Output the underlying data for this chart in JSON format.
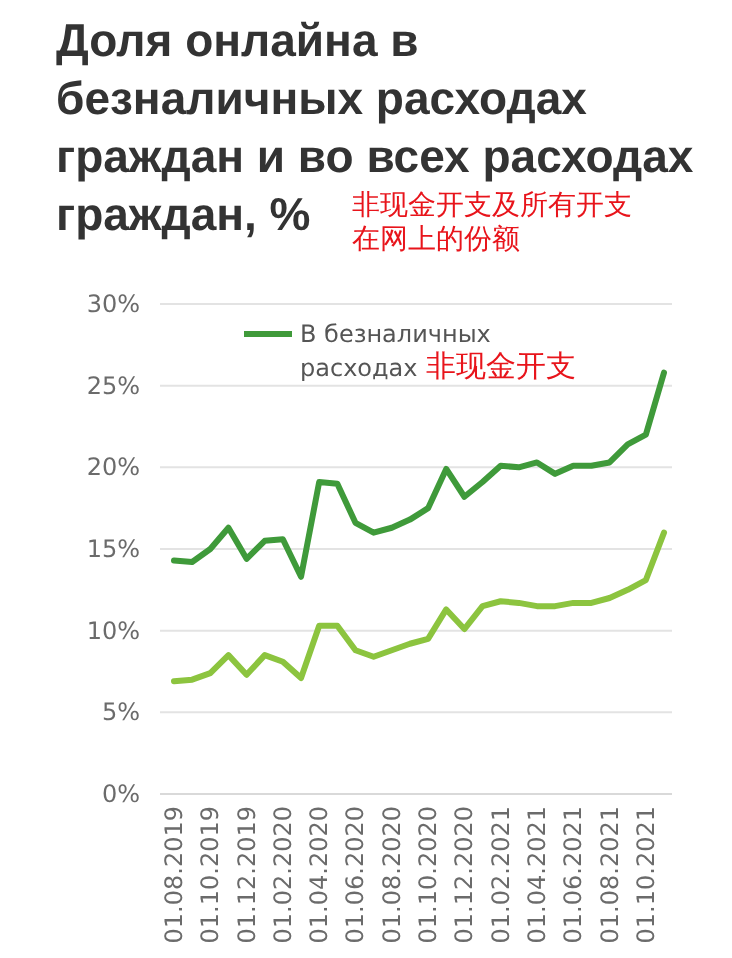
{
  "chart_data": {
    "type": "line",
    "title": "Доля онлайна в безналичных расходах граждан и во всех расходах граждан, %",
    "annotations": [
      "非现金开支及所有开支在网上的份额",
      "非现金开支"
    ],
    "categories": [
      "01.08.2019",
      null,
      "01.10.2019",
      null,
      "01.12.2019",
      null,
      "01.02.2020",
      null,
      "01.04.2020",
      null,
      "01.06.2020",
      null,
      "01.08.2020",
      null,
      "01.10.2020",
      null,
      "01.12.2020",
      null,
      "01.02.2021",
      null,
      "01.04.2021",
      null,
      "01.06.2021",
      null,
      "01.08.2021",
      null,
      "01.10.2021",
      null
    ],
    "series": [
      {
        "name": "В безналичных расходах",
        "color": "#3f9a3a",
        "values": [
          14.3,
          14.2,
          15.0,
          16.3,
          14.4,
          15.5,
          15.6,
          13.3,
          19.1,
          19.0,
          16.6,
          16.0,
          16.3,
          16.8,
          17.5,
          19.9,
          18.2,
          19.1,
          20.1,
          20.0,
          20.3,
          19.6,
          20.1,
          20.1,
          20.3,
          21.4,
          22.0,
          25.8
        ]
      },
      {
        "color": "#8cc43f",
        "values": [
          6.9,
          7.0,
          7.4,
          8.5,
          7.3,
          8.5,
          8.1,
          7.1,
          10.3,
          10.3,
          8.8,
          8.4,
          8.8,
          9.2,
          9.5,
          11.3,
          10.1,
          11.5,
          11.8,
          11.7,
          11.5,
          11.5,
          11.7,
          11.7,
          12.0,
          12.5,
          13.1,
          16.0
        ]
      }
    ],
    "ylim": [
      0,
      30
    ],
    "yticks": [
      {
        "value": 0,
        "label": "0%"
      },
      {
        "value": 5,
        "label": "5%"
      },
      {
        "value": 10,
        "label": "10%"
      },
      {
        "value": 15,
        "label": "15%"
      },
      {
        "value": 20,
        "label": "20%"
      },
      {
        "value": 25,
        "label": "25%"
      },
      {
        "value": 30,
        "label": "30%"
      }
    ],
    "grid": "y",
    "legend": "top left",
    "marker": "none",
    "line_style": "solid"
  }
}
